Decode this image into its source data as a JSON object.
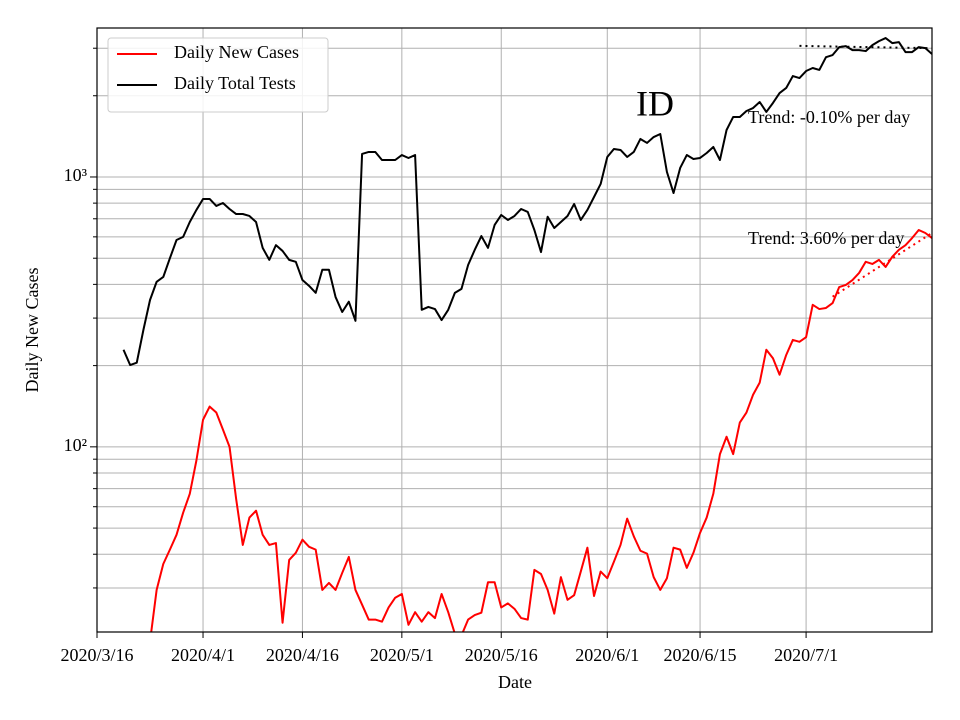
{
  "chart_data": {
    "type": "line",
    "annotation": "ID",
    "xlabel": "Date",
    "ylabel": "Daily New Cases",
    "yscale": "log",
    "grid": true,
    "legend": "upper left",
    "xlim": [
      "2020/3/16",
      "2020/7/20"
    ],
    "xticks": [
      "2020/3/16",
      "2020/4/1",
      "2020/4/16",
      "2020/5/1",
      "2020/5/16",
      "2020/6/1",
      "2020/6/15",
      "2020/7/1"
    ],
    "ylim": [
      20.6,
      3565
    ],
    "yticks": [
      {
        "value": 100,
        "label": "10²"
      },
      {
        "value": 1000,
        "label": "10³"
      }
    ],
    "yminor_ticks": [
      30,
      40,
      50,
      60,
      70,
      80,
      90,
      200,
      300,
      400,
      500,
      600,
      700,
      800,
      900,
      2000,
      3000
    ],
    "x": [
      "2020/3/20",
      "2020/3/21",
      "2020/3/22",
      "2020/3/23",
      "2020/3/24",
      "2020/3/25",
      "2020/3/26",
      "2020/3/27",
      "2020/3/28",
      "2020/3/29",
      "2020/3/30",
      "2020/3/31",
      "2020/4/1",
      "2020/4/2",
      "2020/4/3",
      "2020/4/4",
      "2020/4/5",
      "2020/4/6",
      "2020/4/7",
      "2020/4/8",
      "2020/4/9",
      "2020/4/10",
      "2020/4/11",
      "2020/4/12",
      "2020/4/13",
      "2020/4/14",
      "2020/4/15",
      "2020/4/16",
      "2020/4/17",
      "2020/4/18",
      "2020/4/19",
      "2020/4/20",
      "2020/4/21",
      "2020/4/22",
      "2020/4/23",
      "2020/4/24",
      "2020/4/25",
      "2020/4/26",
      "2020/4/27",
      "2020/4/28",
      "2020/4/29",
      "2020/4/30",
      "2020/5/1",
      "2020/5/2",
      "2020/5/3",
      "2020/5/4",
      "2020/5/5",
      "2020/5/6",
      "2020/5/7",
      "2020/5/8",
      "2020/5/9",
      "2020/5/10",
      "2020/5/11",
      "2020/5/12",
      "2020/5/13",
      "2020/5/14",
      "2020/5/15",
      "2020/5/16",
      "2020/5/17",
      "2020/5/18",
      "2020/5/19",
      "2020/5/20",
      "2020/5/21",
      "2020/5/22",
      "2020/5/23",
      "2020/5/24",
      "2020/5/25",
      "2020/5/26",
      "2020/5/27",
      "2020/5/28",
      "2020/5/29",
      "2020/5/30",
      "2020/5/31",
      "2020/6/1",
      "2020/6/2",
      "2020/6/3",
      "2020/6/4",
      "2020/6/5",
      "2020/6/6",
      "2020/6/7",
      "2020/6/8",
      "2020/6/9",
      "2020/6/10",
      "2020/6/11",
      "2020/6/12",
      "2020/6/13",
      "2020/6/14",
      "2020/6/15",
      "2020/6/16",
      "2020/6/17",
      "2020/6/18",
      "2020/6/19",
      "2020/6/20",
      "2020/6/21",
      "2020/6/22",
      "2020/6/23",
      "2020/6/24",
      "2020/6/25",
      "2020/6/26",
      "2020/6/27",
      "2020/6/28",
      "2020/6/29",
      "2020/6/30",
      "2020/7/1",
      "2020/7/2",
      "2020/7/3",
      "2020/7/4",
      "2020/7/5",
      "2020/7/6",
      "2020/7/7",
      "2020/7/8",
      "2020/7/9",
      "2020/7/10",
      "2020/7/11",
      "2020/7/12",
      "2020/7/13",
      "2020/7/14",
      "2020/7/15",
      "2020/7/16",
      "2020/7/17",
      "2020/7/18",
      "2020/7/19",
      "2020/7/20"
    ],
    "series": [
      {
        "name": "Daily New Cases",
        "color": "#ff0000",
        "values": [
          null,
          null,
          null,
          null,
          19,
          29.5,
          36.8,
          41.6,
          47.2,
          57,
          67,
          89,
          126,
          141,
          134,
          116,
          100,
          64,
          43.3,
          54.7,
          58,
          47.2,
          43.3,
          44,
          22.3,
          38.1,
          40.5,
          45.3,
          42.6,
          41.6,
          29.5,
          31.3,
          29.5,
          34.1,
          39.1,
          29.5,
          26,
          22.9,
          22.9,
          22.5,
          25.4,
          27.6,
          28.5,
          21.9,
          24.4,
          22.5,
          24.4,
          23.2,
          28.5,
          24.4,
          20.3,
          20,
          22.9,
          23.8,
          24.3,
          31.5,
          31.5,
          25.4,
          26.3,
          25.1,
          23.2,
          22.9,
          35,
          33.8,
          29.5,
          24.1,
          32.9,
          27.1,
          28.2,
          34.5,
          42.3,
          28,
          34.5,
          32.6,
          37.5,
          43.3,
          54.2,
          46.6,
          41.2,
          40.2,
          32.9,
          29.5,
          32.6,
          42.3,
          41.6,
          35.6,
          40.5,
          48,
          54.7,
          67,
          94,
          109,
          94,
          123,
          134,
          156,
          173,
          229,
          213,
          185,
          219,
          249,
          245,
          255,
          336,
          324,
          327,
          341,
          391,
          398,
          415,
          441,
          485,
          476,
          493,
          464,
          506,
          537,
          559,
          594,
          636,
          620,
          594
        ],
        "trend": {
          "x": [
            "2020/7/5",
            "2020/7/20"
          ],
          "values": [
            360,
            620
          ],
          "label": "Trend: 3.60% per day"
        }
      },
      {
        "name": "Daily Total Tests",
        "color": "#000000",
        "values": [
          229,
          201,
          205,
          271,
          350,
          409,
          426,
          500,
          584,
          600,
          681,
          755,
          829,
          829,
          781,
          801,
          761,
          729,
          729,
          717,
          681,
          546,
          493,
          559,
          532,
          493,
          485,
          415,
          395,
          372,
          453,
          453,
          359,
          316,
          345,
          293,
          1217,
          1238,
          1238,
          1156,
          1156,
          1156,
          1206,
          1176,
          1206,
          322,
          330,
          324,
          295,
          322,
          372,
          385,
          472,
          537,
          604,
          546,
          664,
          723,
          693,
          717,
          761,
          742,
          636,
          527,
          712,
          647,
          681,
          717,
          794,
          693,
          755,
          843,
          942,
          1186,
          1270,
          1259,
          1186,
          1238,
          1383,
          1337,
          1406,
          1443,
          1044,
          872,
          1080,
          1206,
          1166,
          1176,
          1227,
          1292,
          1156,
          1493,
          1669,
          1669,
          1756,
          1801,
          1896,
          1742,
          1880,
          2047,
          2137,
          2366,
          2326,
          2470,
          2534,
          2493,
          2780,
          2831,
          3029,
          3055,
          2952,
          2952,
          2928,
          3081,
          3188,
          3272,
          3134,
          3161,
          2903,
          2903,
          3029,
          3003,
          2855
        ],
        "trend": {
          "x": [
            "2020/6/30",
            "2020/7/20"
          ],
          "values": [
            3060,
            3000
          ],
          "label": "Trend: -0.10% per day"
        }
      }
    ]
  }
}
